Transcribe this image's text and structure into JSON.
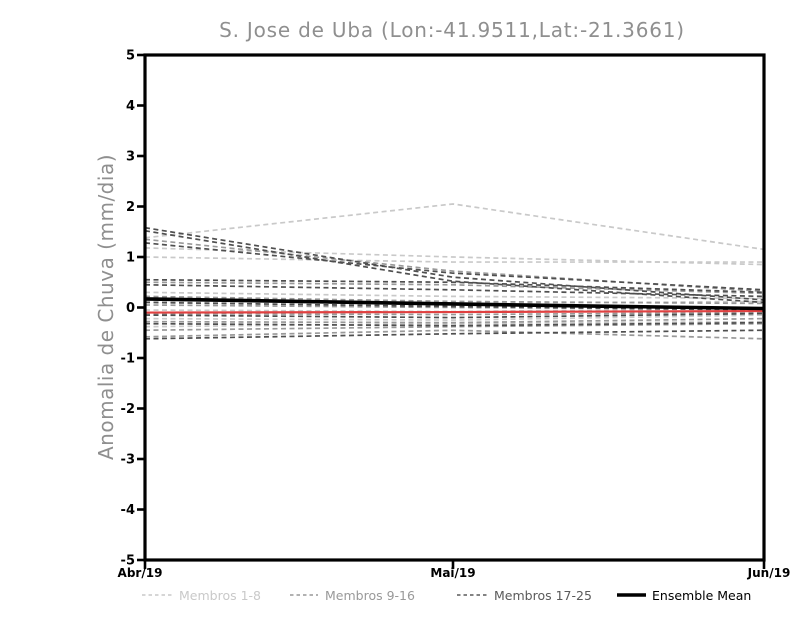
{
  "chart_data": {
    "type": "line",
    "title": "S. Jose de Uba (Lon:-41.9511,Lat:-21.3661)",
    "ylabel": "Anomalia de Chuva (mm/dia)",
    "xlabel": "",
    "x_categories": [
      "Abr/19",
      "Mai/19",
      "Jun/19"
    ],
    "ylim": [
      -5,
      5
    ],
    "y_ticks": [
      5,
      4,
      3,
      2,
      1,
      0,
      -1,
      -2,
      -3,
      -4,
      -5
    ],
    "grid": false,
    "legend_position": "bottom",
    "series_groups": [
      {
        "name": "Membros 1-8",
        "color": "#c9c9c9",
        "style": "dashed",
        "members": [
          [
            1.18,
            1.0,
            0.85
          ],
          [
            1.38,
            2.05,
            1.15
          ],
          [
            1.0,
            0.9,
            0.9
          ],
          [
            0.3,
            0.22,
            0.18
          ],
          [
            0.12,
            0.08,
            0.12
          ],
          [
            -0.05,
            -0.08,
            -0.02
          ],
          [
            -0.22,
            -0.25,
            -0.15
          ],
          [
            -0.38,
            -0.32,
            -0.28
          ]
        ]
      },
      {
        "name": "Membros 9-16",
        "color": "#999999",
        "style": "dashed",
        "members": [
          [
            1.35,
            0.72,
            0.32
          ],
          [
            0.5,
            0.45,
            0.28
          ],
          [
            0.22,
            0.12,
            0.08
          ],
          [
            0.05,
            0.0,
            -0.03
          ],
          [
            -0.12,
            -0.14,
            -0.1
          ],
          [
            -0.28,
            -0.3,
            -0.22
          ],
          [
            -0.45,
            -0.38,
            -0.32
          ],
          [
            -0.58,
            -0.45,
            -0.62
          ]
        ]
      },
      {
        "name": "Membros 17-25",
        "color": "#4f4f4f",
        "style": "dashed",
        "members": [
          [
            1.58,
            0.6,
            0.15
          ],
          [
            1.52,
            0.52,
            0.1
          ],
          [
            1.28,
            0.68,
            0.35
          ],
          [
            0.55,
            0.5,
            0.3
          ],
          [
            0.45,
            0.35,
            0.22
          ],
          [
            0.1,
            0.02,
            -0.05
          ],
          [
            -0.15,
            -0.2,
            -0.12
          ],
          [
            -0.32,
            -0.36,
            -0.3
          ],
          [
            -0.62,
            -0.52,
            -0.45
          ]
        ]
      }
    ],
    "red_line": {
      "color": "#e04040",
      "values": [
        -0.1,
        -0.09,
        -0.07
      ]
    },
    "ensemble_mean": {
      "name": "Ensemble Mean",
      "color": "#000000",
      "values": [
        0.17,
        0.07,
        -0.02
      ]
    },
    "legend": [
      {
        "label": "Membros 1-8",
        "color": "#c9c9c9",
        "style": "dashed"
      },
      {
        "label": "Membros 9-16",
        "color": "#999999",
        "style": "dashed"
      },
      {
        "label": "Membros 17-25",
        "color": "#5a5a5a",
        "style": "dashed"
      },
      {
        "label": "Ensemble Mean",
        "color": "#000000",
        "style": "solid"
      }
    ]
  }
}
